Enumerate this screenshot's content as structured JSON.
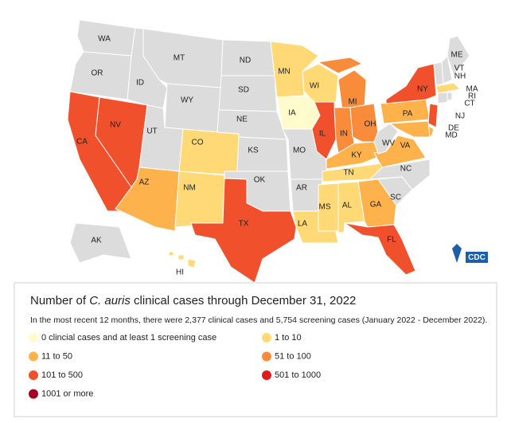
{
  "map": {
    "no_data_color": "#dcdcdc",
    "states": [
      {
        "label": "WA",
        "category": null
      },
      {
        "label": "OR",
        "category": null
      },
      {
        "label": "CA",
        "category": 4
      },
      {
        "label": "NV",
        "category": 4
      },
      {
        "label": "ID",
        "category": null
      },
      {
        "label": "MT",
        "category": null
      },
      {
        "label": "WY",
        "category": null
      },
      {
        "label": "UT",
        "category": null
      },
      {
        "label": "CO",
        "category": 1
      },
      {
        "label": "AZ",
        "category": 2
      },
      {
        "label": "NM",
        "category": 1
      },
      {
        "label": "ND",
        "category": null
      },
      {
        "label": "SD",
        "category": null
      },
      {
        "label": "NE",
        "category": null
      },
      {
        "label": "KS",
        "category": null
      },
      {
        "label": "OK",
        "category": null
      },
      {
        "label": "TX",
        "category": 4
      },
      {
        "label": "MN",
        "category": 1
      },
      {
        "label": "IA",
        "category": 0
      },
      {
        "label": "MO",
        "category": null
      },
      {
        "label": "AR",
        "category": null
      },
      {
        "label": "LA",
        "category": 1
      },
      {
        "label": "WI",
        "category": 1
      },
      {
        "label": "IL",
        "category": 4
      },
      {
        "label": "MI",
        "category": 3
      },
      {
        "label": "IN",
        "category": 3
      },
      {
        "label": "OH",
        "category": 3
      },
      {
        "label": "KY",
        "category": 2
      },
      {
        "label": "TN",
        "category": 1
      },
      {
        "label": "MS",
        "category": 1
      },
      {
        "label": "AL",
        "category": 1
      },
      {
        "label": "GA",
        "category": 2
      },
      {
        "label": "FL",
        "category": 4
      },
      {
        "label": "SC",
        "category": null
      },
      {
        "label": "NC",
        "category": null
      },
      {
        "label": "VA",
        "category": 2
      },
      {
        "label": "WV",
        "category": null
      },
      {
        "label": "PA",
        "category": 2
      },
      {
        "label": "NY",
        "category": 4
      },
      {
        "label": "VT",
        "category": null
      },
      {
        "label": "NH",
        "category": null
      },
      {
        "label": "ME",
        "category": null
      },
      {
        "label": "MA",
        "category": 1
      },
      {
        "label": "RI",
        "category": null
      },
      {
        "label": "CT",
        "category": null
      },
      {
        "label": "NJ",
        "category": 4
      },
      {
        "label": "DE",
        "category": 2
      },
      {
        "label": "MD",
        "category": 2
      },
      {
        "label": "AK",
        "category": null
      },
      {
        "label": "HI",
        "category": 1
      }
    ],
    "logo": "CDC"
  },
  "legend": {
    "title": [
      "Number of ",
      "C. auris",
      " clinical cases through December 31, 2022"
    ],
    "subtitle": "In the most recent 12 months, there were 2,377 clinical cases and 5,754 screening cases (January 2022 - December 2022).",
    "items": [
      {
        "label": "0 clincial cases and at least 1 screening case",
        "color": "#fffbcc"
      },
      {
        "label": "1 to 10",
        "color": "#fed976"
      },
      {
        "label": "11 to 50",
        "color": "#fdb24c"
      },
      {
        "label": "51 to 100",
        "color": "#f88c3b"
      },
      {
        "label": "101 to 500",
        "color": "#f0502b"
      },
      {
        "label": "501 to 1000",
        "color": "#dd1c1c"
      },
      {
        "label": "1001 or more",
        "color": "#a50026"
      }
    ]
  }
}
